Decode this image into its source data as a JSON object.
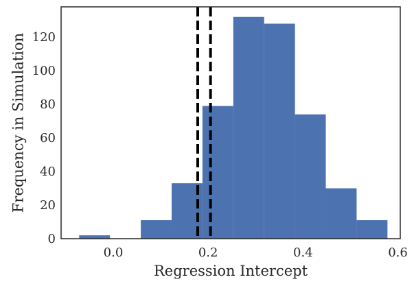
{
  "chart_data": {
    "type": "bar",
    "title": "",
    "xlabel": "Regression Intercept",
    "ylabel": "Frequency in Simulation",
    "xlim": [
      -0.11,
      0.605
    ],
    "ylim": [
      0,
      138
    ],
    "xticks": [
      0.0,
      0.2,
      0.4,
      0.6
    ],
    "xtick_labels": [
      "0.0",
      "0.2",
      "0.4",
      "0.6"
    ],
    "yticks": [
      0,
      20,
      40,
      60,
      80,
      100,
      120
    ],
    "ytick_labels": [
      "0",
      "20",
      "40",
      "60",
      "80",
      "100",
      "120"
    ],
    "grid": false,
    "bar_color": "#4c72b0",
    "bins": [
      {
        "x0": -0.072,
        "x1": -0.007,
        "count": 2
      },
      {
        "x0": -0.007,
        "x1": 0.058,
        "count": 0
      },
      {
        "x0": 0.058,
        "x1": 0.123,
        "count": 11
      },
      {
        "x0": 0.123,
        "x1": 0.188,
        "count": 33
      },
      {
        "x0": 0.188,
        "x1": 0.253,
        "count": 79
      },
      {
        "x0": 0.253,
        "x1": 0.318,
        "count": 132
      },
      {
        "x0": 0.318,
        "x1": 0.383,
        "count": 128
      },
      {
        "x0": 0.383,
        "x1": 0.448,
        "count": 74
      },
      {
        "x0": 0.448,
        "x1": 0.513,
        "count": 30
      },
      {
        "x0": 0.513,
        "x1": 0.578,
        "count": 11
      }
    ],
    "vlines": [
      {
        "x": 0.178,
        "style": "dashed",
        "color": "#000000"
      },
      {
        "x": 0.205,
        "style": "dashed",
        "color": "#000000"
      }
    ]
  }
}
